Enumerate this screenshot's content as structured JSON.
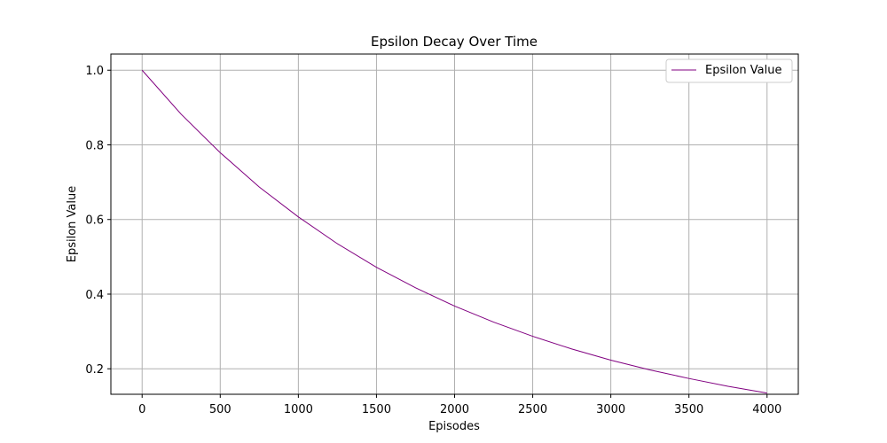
{
  "chart_data": {
    "type": "line",
    "title": "Epsilon Decay Over Time",
    "xlabel": "Episodes",
    "ylabel": "Epsilon Value",
    "xlim": [
      -200,
      4200
    ],
    "ylim": [
      0.1317,
      1.0433
    ],
    "x_ticks": [
      0,
      500,
      1000,
      1500,
      2000,
      2500,
      3000,
      3500,
      4000
    ],
    "y_ticks": [
      0.2,
      0.4,
      0.6,
      0.8,
      1.0
    ],
    "x_tick_labels": [
      "0",
      "500",
      "1000",
      "1500",
      "2000",
      "2500",
      "3000",
      "3500",
      "4000"
    ],
    "y_tick_labels": [
      "0.2",
      "0.4",
      "0.6",
      "0.8",
      "1.0"
    ],
    "grid": true,
    "legend_position": "top-right",
    "series": [
      {
        "name": "Epsilon Value",
        "color": "#800080",
        "x": [
          0,
          250,
          500,
          750,
          1000,
          1250,
          1500,
          1750,
          2000,
          2250,
          2500,
          2750,
          3000,
          3250,
          3500,
          3750,
          4000
        ],
        "y": [
          1.0,
          0.882,
          0.779,
          0.687,
          0.607,
          0.535,
          0.472,
          0.417,
          0.368,
          0.325,
          0.287,
          0.253,
          0.223,
          0.197,
          0.174,
          0.153,
          0.135
        ]
      }
    ]
  }
}
